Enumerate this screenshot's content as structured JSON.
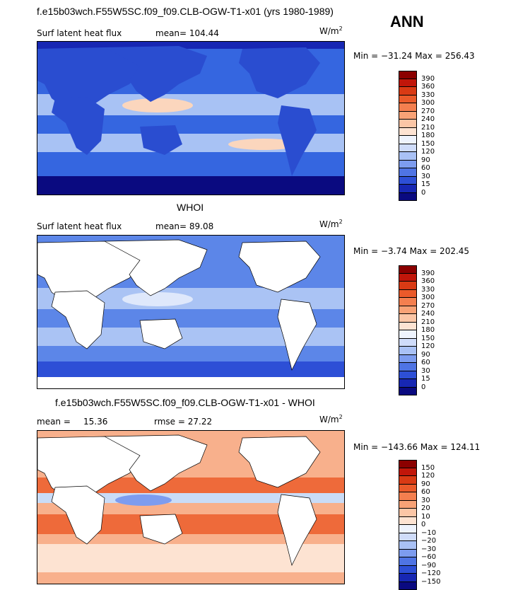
{
  "header": {
    "main_title": "f.e15b03wch.F55W5SC.f09_f09.CLB-OGW-T1-x01 (yrs 1980-1989)",
    "season": "ANN"
  },
  "panels": [
    {
      "id": "model",
      "title": "",
      "left_label": "Surf latent heat flux",
      "mean_label": "mean= 104.44",
      "rmse_label": "",
      "units_base": "W/m",
      "units_exp": "2",
      "minmax": "Min = −31.24 Max = 256.43",
      "colorbar": {
        "levels": [
          "390",
          "360",
          "330",
          "300",
          "270",
          "240",
          "210",
          "180",
          "150",
          "120",
          "90",
          "60",
          "30",
          "15",
          "0"
        ],
        "colors": [
          "#8b0000",
          "#c1160a",
          "#d93a14",
          "#ea5a2a",
          "#f47f4f",
          "#f8a276",
          "#fbc6a6",
          "#fde3d2",
          "#eef3fd",
          "#cfdcfa",
          "#a9c1f5",
          "#7d9cef",
          "#4f74e4",
          "#2d4fd6",
          "#1727b3",
          "#0a0a80"
        ]
      },
      "field_colors": {
        "ocean": "#3566e0",
        "land": "#2a4dd0",
        "warm": "#a8c2f4",
        "hot": "#fbd6bd"
      }
    },
    {
      "id": "obs",
      "title": "WHOI",
      "left_label": "Surf latent heat flux",
      "mean_label": "mean=  89.08",
      "rmse_label": "",
      "units_base": "W/m",
      "units_exp": "2",
      "minmax": "Min =  −3.74 Max = 202.45",
      "colorbar": {
        "levels": [
          "390",
          "360",
          "330",
          "300",
          "270",
          "240",
          "210",
          "180",
          "150",
          "120",
          "90",
          "60",
          "30",
          "15",
          "0"
        ],
        "colors": [
          "#8b0000",
          "#c1160a",
          "#d93a14",
          "#ea5a2a",
          "#f47f4f",
          "#f8a276",
          "#fbc6a6",
          "#fde3d2",
          "#eef3fd",
          "#cfdcfa",
          "#a9c1f5",
          "#7d9cef",
          "#4f74e4",
          "#2d4fd6",
          "#1727b3",
          "#0a0a80"
        ]
      },
      "field_colors": {
        "ocean": "#5c86e8",
        "land": "#ffffff",
        "warm": "#aac3f4",
        "hot": "#dfe8fb"
      }
    },
    {
      "id": "diff",
      "title": "f.e15b03wch.F55W5SC.f09_f09.CLB-OGW-T1-x01 - WHOI",
      "left_label": "mean =",
      "mean_label": "15.36",
      "rmse_label": "rmse =   27.22",
      "units_base": "W/m",
      "units_exp": "2",
      "minmax": "Min = −143.66 Max = 124.11",
      "colorbar": {
        "levels": [
          "150",
          "120",
          "90",
          "60",
          "30",
          "20",
          "10",
          "0",
          "−10",
          "−20",
          "−30",
          "−60",
          "−90",
          "−120",
          "−150"
        ],
        "colors": [
          "#8b0000",
          "#c1160a",
          "#d93a14",
          "#ea5a2a",
          "#f47f4f",
          "#f8a276",
          "#fbc6a6",
          "#fde3d2",
          "#eef3fd",
          "#cfdcfa",
          "#a9c1f5",
          "#7d9cef",
          "#4f74e4",
          "#2d4fd6",
          "#1727b3",
          "#0a0a80"
        ]
      },
      "field_colors": {
        "ocean": "#f8b08c",
        "land": "#ffffff",
        "warm": "#ee6a3a",
        "hot": "#c9dcf7"
      }
    }
  ]
}
